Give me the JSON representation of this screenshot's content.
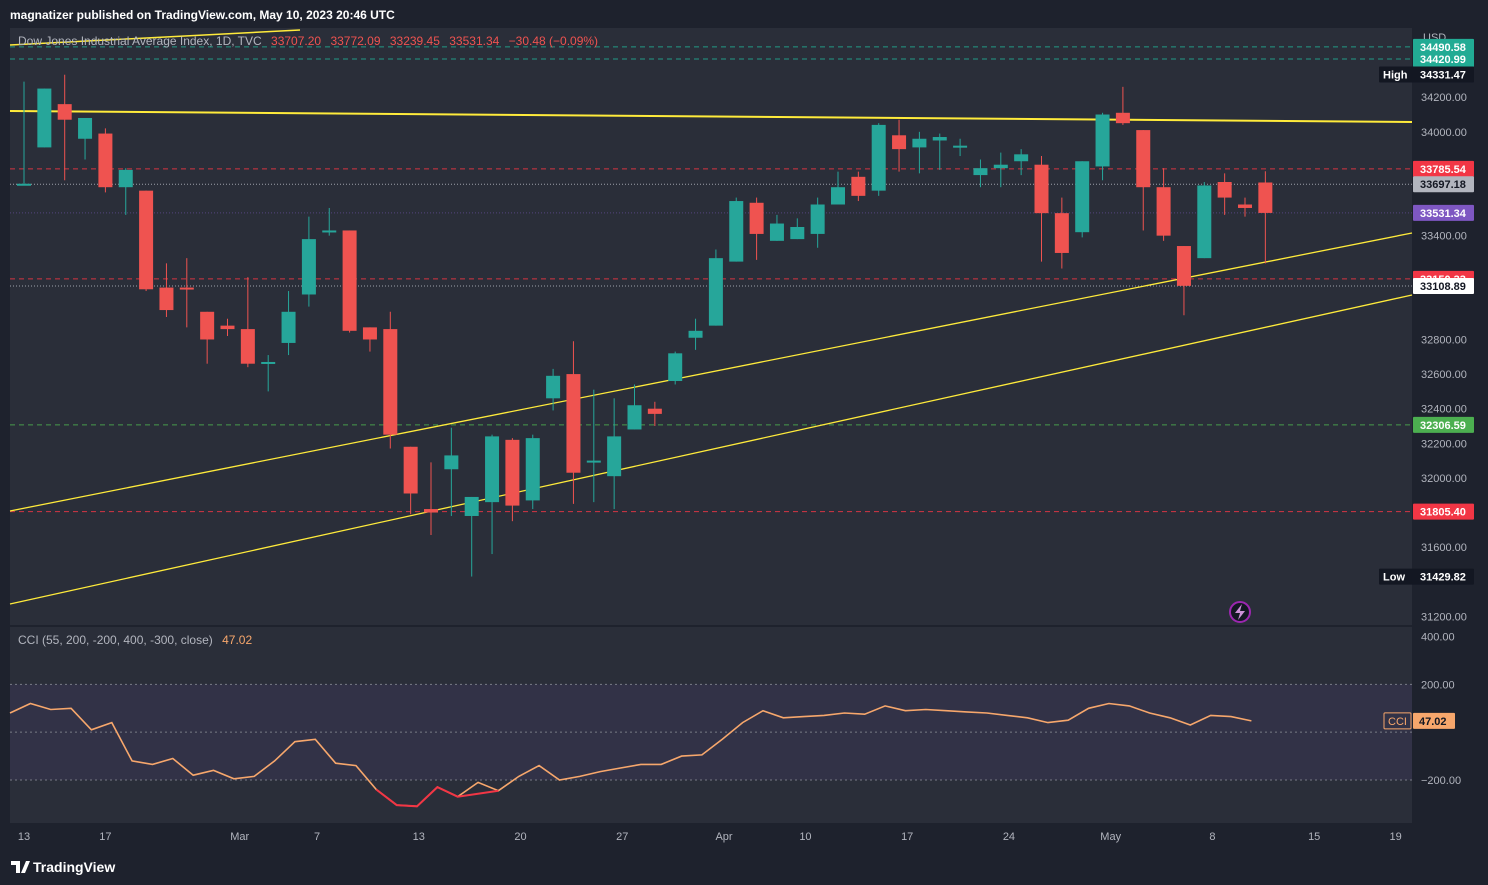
{
  "header": {
    "published": "magnatizer published on TradingView.com, May 10, 2023 20:46 UTC"
  },
  "legend": {
    "symbol": "Dow Jones Industrial Average Index, 1D, TVC",
    "o": "33707.20",
    "h": "33772.09",
    "l": "33239.45",
    "c": "33531.34",
    "change": "−30.48 (−0.09%)"
  },
  "indicator": {
    "name": "CCI (55, 200, -200, 400, -300, close)",
    "value": "47.02",
    "tag_label": "CCI"
  },
  "footer": {
    "brand": "TradingView"
  },
  "colors": {
    "up": "#26a69a",
    "down": "#ef5350",
    "trendline": "#ffeb3b",
    "cci_line": "#f7a76c",
    "background": "#1e222d",
    "pane": "#2a2e39",
    "axis_text": "#b2b5be"
  },
  "price_axis": {
    "currency": "USD",
    "ticks": [
      {
        "v": 34200,
        "label": "34200.00"
      },
      {
        "v": 34000,
        "label": "34000.00"
      },
      {
        "v": 33400,
        "label": "33400.00"
      },
      {
        "v": 32800,
        "label": "32800.00"
      },
      {
        "v": 32600,
        "label": "32600.00"
      },
      {
        "v": 32400,
        "label": "32400.00"
      },
      {
        "v": 32200,
        "label": "32200.00"
      },
      {
        "v": 32000,
        "label": "32000.00"
      },
      {
        "v": 31600,
        "label": "31600.00"
      },
      {
        "v": 31200,
        "label": "31200.00"
      }
    ],
    "price_labels": [
      {
        "v": 34490.58,
        "text": "34490.58",
        "bg": "#22ab94",
        "fg": "#ffffff"
      },
      {
        "v": 34420.99,
        "text": "34420.99",
        "bg": "#22ab94",
        "fg": "#ffffff"
      },
      {
        "v": 34331.47,
        "text": "34331.47",
        "bg": "#131722",
        "fg": "#ffffff",
        "tag": "High"
      },
      {
        "v": 33785.54,
        "text": "33785.54",
        "bg": "#f23645",
        "fg": "#ffffff"
      },
      {
        "v": 33697.18,
        "text": "33697.18",
        "bg": "#b2b5be",
        "fg": "#131722"
      },
      {
        "v": 33531.34,
        "text": "33531.34",
        "bg": "#7e57c2",
        "fg": "#ffffff"
      },
      {
        "v": 33150.33,
        "text": "33150.33",
        "bg": "#f23645",
        "fg": "#ffffff"
      },
      {
        "v": 33108.89,
        "text": "33108.89",
        "bg": "#ffffff",
        "fg": "#131722"
      },
      {
        "v": 32306.59,
        "text": "32306.59",
        "bg": "#4caf50",
        "fg": "#ffffff"
      },
      {
        "v": 31805.4,
        "text": "31805.40",
        "bg": "#f23645",
        "fg": "#ffffff"
      },
      {
        "v": 31429.82,
        "text": "31429.82",
        "bg": "#131722",
        "fg": "#ffffff",
        "tag": "Low"
      }
    ]
  },
  "cci_axis": {
    "ticks": [
      {
        "v": 400,
        "label": "400.00"
      },
      {
        "v": 200,
        "label": "200.00"
      },
      {
        "v": -200,
        "label": "−200.00"
      }
    ]
  },
  "time_axis": {
    "ticks": [
      {
        "i": 0,
        "label": "13"
      },
      {
        "i": 4,
        "label": "17"
      },
      {
        "i": 10.6,
        "label": "Mar"
      },
      {
        "i": 14.4,
        "label": "7"
      },
      {
        "i": 19.4,
        "label": "13"
      },
      {
        "i": 24.4,
        "label": "20"
      },
      {
        "i": 29.4,
        "label": "27"
      },
      {
        "i": 34.4,
        "label": "Apr"
      },
      {
        "i": 38.4,
        "label": "10"
      },
      {
        "i": 43.4,
        "label": "17"
      },
      {
        "i": 48.4,
        "label": "24"
      },
      {
        "i": 53.4,
        "label": "May"
      },
      {
        "i": 58.4,
        "label": "8"
      },
      {
        "i": 63.4,
        "label": "15"
      },
      {
        "i": 67.4,
        "label": "19"
      }
    ]
  },
  "chart_data": {
    "type": "candlestick",
    "title": "Dow Jones Industrial Average Index, 1D, TVC",
    "ylim": [
      31150,
      34600
    ],
    "candles": [
      {
        "o": 33700,
        "h": 34290,
        "l": 33700,
        "c": 33700
      },
      {
        "o": 33910,
        "h": 34250,
        "l": 33910,
        "c": 34250
      },
      {
        "o": 34160,
        "h": 34330,
        "l": 33720,
        "c": 34070
      },
      {
        "o": 33960,
        "h": 34070,
        "l": 33840,
        "c": 34080
      },
      {
        "o": 33990,
        "h": 34020,
        "l": 33650,
        "c": 33680
      },
      {
        "o": 33680,
        "h": 33790,
        "l": 33520,
        "c": 33780
      },
      {
        "o": 33660,
        "h": 33660,
        "l": 33080,
        "c": 33090
      },
      {
        "o": 33100,
        "h": 33240,
        "l": 32930,
        "c": 32970
      },
      {
        "o": 33100,
        "h": 33270,
        "l": 32870,
        "c": 33090
      },
      {
        "o": 32960,
        "h": 32960,
        "l": 32660,
        "c": 32800
      },
      {
        "o": 32880,
        "h": 32920,
        "l": 32820,
        "c": 32860
      },
      {
        "o": 32860,
        "h": 33160,
        "l": 32640,
        "c": 32660
      },
      {
        "o": 32660,
        "h": 32710,
        "l": 32500,
        "c": 32670
      },
      {
        "o": 32780,
        "h": 33080,
        "l": 32710,
        "c": 32960
      },
      {
        "o": 33060,
        "h": 33510,
        "l": 32990,
        "c": 33380
      },
      {
        "o": 33420,
        "h": 33560,
        "l": 33400,
        "c": 33430
      },
      {
        "o": 33430,
        "h": 33430,
        "l": 32840,
        "c": 32850
      },
      {
        "o": 32870,
        "h": 32870,
        "l": 32730,
        "c": 32800
      },
      {
        "o": 32860,
        "h": 32960,
        "l": 32170,
        "c": 32250
      },
      {
        "o": 32180,
        "h": 32180,
        "l": 31790,
        "c": 31910
      },
      {
        "o": 31820,
        "h": 32090,
        "l": 31670,
        "c": 31800
      },
      {
        "o": 32050,
        "h": 32290,
        "l": 31780,
        "c": 32130
      },
      {
        "o": 31780,
        "h": 31890,
        "l": 31430,
        "c": 31890
      },
      {
        "o": 31860,
        "h": 32250,
        "l": 31560,
        "c": 32240
      },
      {
        "o": 32220,
        "h": 32230,
        "l": 31750,
        "c": 31840
      },
      {
        "o": 31870,
        "h": 32250,
        "l": 31820,
        "c": 32230
      },
      {
        "o": 32460,
        "h": 32630,
        "l": 32390,
        "c": 32590
      },
      {
        "o": 32600,
        "h": 32790,
        "l": 31850,
        "c": 32030
      },
      {
        "o": 32100,
        "h": 32510,
        "l": 31860,
        "c": 32100
      },
      {
        "o": 32010,
        "h": 32460,
        "l": 31820,
        "c": 32240
      },
      {
        "o": 32280,
        "h": 32540,
        "l": 32280,
        "c": 32420
      },
      {
        "o": 32400,
        "h": 32440,
        "l": 32300,
        "c": 32370
      },
      {
        "o": 32560,
        "h": 32730,
        "l": 32540,
        "c": 32720
      },
      {
        "o": 32810,
        "h": 32920,
        "l": 32740,
        "c": 32850
      },
      {
        "o": 32880,
        "h": 33320,
        "l": 32880,
        "c": 33270
      },
      {
        "o": 33250,
        "h": 33620,
        "l": 33250,
        "c": 33600
      },
      {
        "o": 33590,
        "h": 33620,
        "l": 33260,
        "c": 33410
      },
      {
        "o": 33370,
        "h": 33520,
        "l": 33370,
        "c": 33470
      },
      {
        "o": 33380,
        "h": 33500,
        "l": 33380,
        "c": 33450
      },
      {
        "o": 33410,
        "h": 33620,
        "l": 33330,
        "c": 33580
      },
      {
        "o": 33580,
        "h": 33770,
        "l": 33580,
        "c": 33680
      },
      {
        "o": 33740,
        "h": 33770,
        "l": 33600,
        "c": 33630
      },
      {
        "o": 33660,
        "h": 34050,
        "l": 33630,
        "c": 34040
      },
      {
        "o": 33980,
        "h": 34070,
        "l": 33770,
        "c": 33900
      },
      {
        "o": 33910,
        "h": 34000,
        "l": 33760,
        "c": 33960
      },
      {
        "o": 33950,
        "h": 33990,
        "l": 33780,
        "c": 33970
      },
      {
        "o": 33910,
        "h": 33960,
        "l": 33860,
        "c": 33920
      },
      {
        "o": 33750,
        "h": 33840,
        "l": 33680,
        "c": 33790
      },
      {
        "o": 33790,
        "h": 33880,
        "l": 33680,
        "c": 33810
      },
      {
        "o": 33830,
        "h": 33900,
        "l": 33750,
        "c": 33870
      },
      {
        "o": 33810,
        "h": 33860,
        "l": 33250,
        "c": 33530
      },
      {
        "o": 33530,
        "h": 33620,
        "l": 33210,
        "c": 33300
      },
      {
        "o": 33420,
        "h": 33830,
        "l": 33390,
        "c": 33830
      },
      {
        "o": 33800,
        "h": 34110,
        "l": 33720,
        "c": 34100
      },
      {
        "o": 34110,
        "h": 34260,
        "l": 34040,
        "c": 34050
      },
      {
        "o": 34010,
        "h": 34010,
        "l": 33430,
        "c": 33680
      },
      {
        "o": 33680,
        "h": 33790,
        "l": 33370,
        "c": 33400
      },
      {
        "o": 33340,
        "h": 33340,
        "l": 32940,
        "c": 33110
      },
      {
        "o": 33270,
        "h": 33710,
        "l": 33270,
        "c": 33690
      },
      {
        "o": 33710,
        "h": 33760,
        "l": 33520,
        "c": 33620
      },
      {
        "o": 33580,
        "h": 33620,
        "l": 33510,
        "c": 33560
      },
      {
        "o": 33707.2,
        "h": 33772.09,
        "l": 33239.45,
        "c": 33531.34
      }
    ],
    "cci": [
      80,
      120,
      95,
      100,
      10,
      40,
      -120,
      -135,
      -110,
      -180,
      -160,
      -195,
      -185,
      -120,
      -40,
      -30,
      -130,
      -140,
      -240,
      -305,
      -310,
      -230,
      -270,
      -210,
      -245,
      -185,
      -140,
      -200,
      -185,
      -165,
      -150,
      -135,
      -135,
      -100,
      -95,
      -30,
      40,
      90,
      60,
      65,
      70,
      80,
      75,
      110,
      90,
      95,
      90,
      85,
      80,
      70,
      60,
      40,
      50,
      100,
      120,
      110,
      80,
      60,
      30,
      70,
      65,
      47
    ]
  }
}
